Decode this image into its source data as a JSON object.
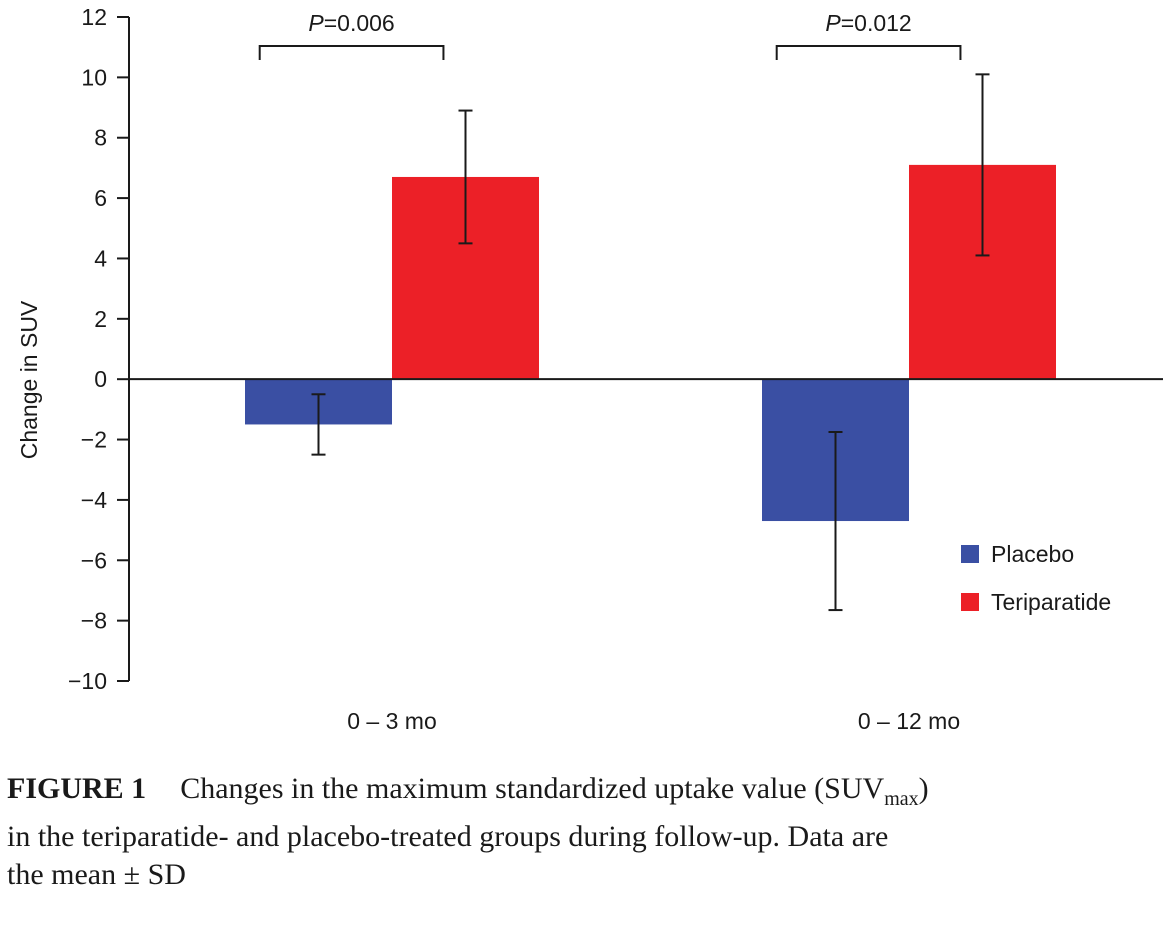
{
  "chart_data": {
    "type": "bar",
    "ylabel": "Change in SUV",
    "ylim": [
      -10,
      12
    ],
    "yticks": [
      12,
      10,
      8,
      6,
      4,
      2,
      0,
      -2,
      -4,
      -6,
      -8,
      -10
    ],
    "ytick_labels": [
      "12",
      "10",
      "8",
      "6",
      "4",
      "2",
      "0",
      "−2",
      "−4",
      "−6",
      "−8",
      "−10"
    ],
    "categories": [
      "0 – 3 mo",
      "0 – 12 mo"
    ],
    "series": [
      {
        "name": "Placebo",
        "color": "#3a4fa3",
        "values": [
          -1.5,
          -4.7
        ],
        "errors": [
          1.0,
          2.95
        ]
      },
      {
        "name": "Teriparatide",
        "color": "#ec2027",
        "values": [
          6.7,
          7.1
        ],
        "errors": [
          2.2,
          3.0
        ]
      }
    ],
    "annotations": [
      {
        "category_index": 0,
        "p_label": "P",
        "p_value": "=0.006"
      },
      {
        "category_index": 1,
        "p_label": "P",
        "p_value": "=0.012"
      }
    ],
    "legend_position": "bottom-right",
    "grid": false
  },
  "caption": {
    "label": "FIGURE 1",
    "line1_pre": "Changes in the maximum standardized uptake value (SUV",
    "line1_sub": "max",
    "line1_post": ")",
    "line2": "in the teriparatide- and placebo-treated groups during follow-up. Data are",
    "line3": "the mean ± SD"
  }
}
